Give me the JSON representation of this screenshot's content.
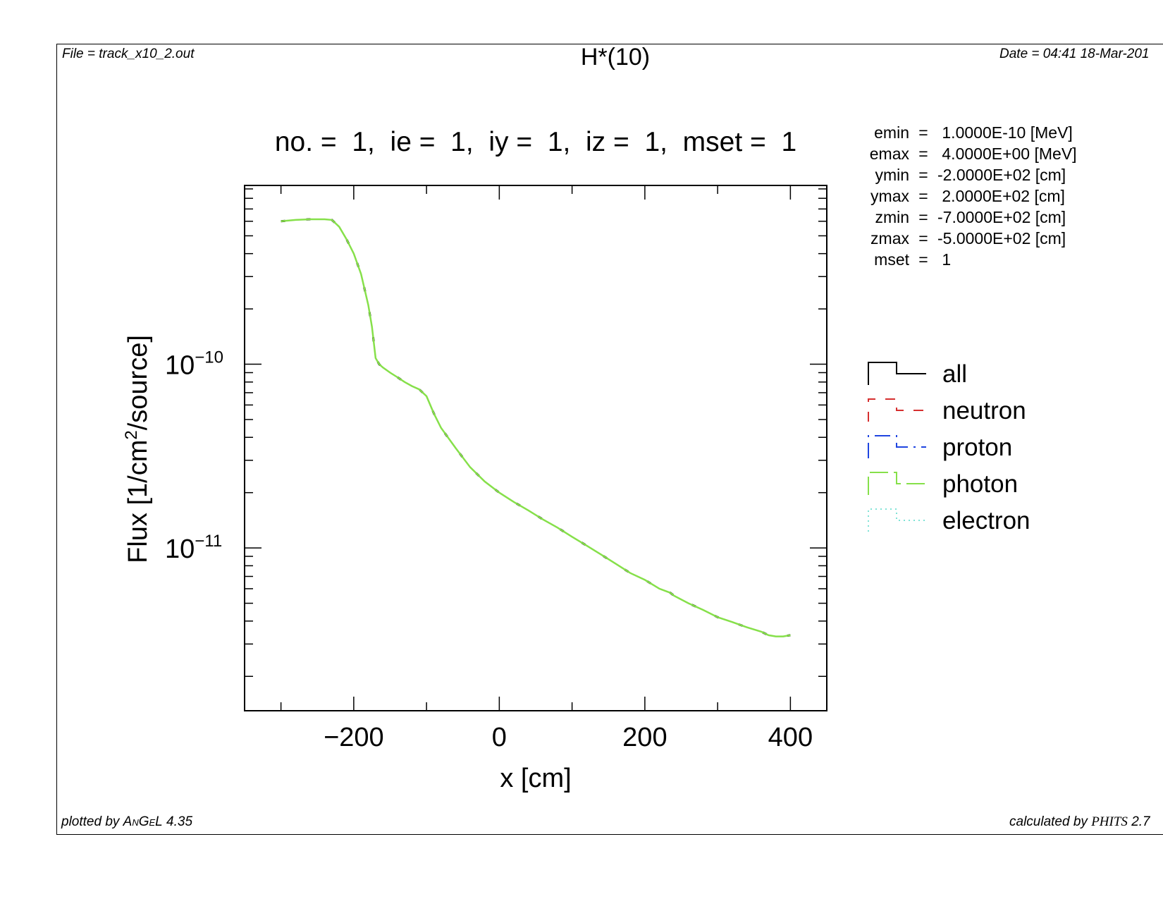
{
  "header": {
    "file": "File = track_x10_2.out",
    "title": "H*(10)",
    "date": "Date = 04:41 18-Mar-201"
  },
  "subtitle": "no. =  1,  ie =  1,  iy =  1,  iz =  1,  mset =  1",
  "params": [
    {
      "name": "emin",
      "value": " 1.0000E-10 [MeV]"
    },
    {
      "name": "emax",
      "value": " 4.0000E+00 [MeV]"
    },
    {
      "name": "ymin",
      "value": "-2.0000E+02 [cm]"
    },
    {
      "name": "ymax",
      "value": " 2.0000E+02 [cm]"
    },
    {
      "name": "zmin",
      "value": "-7.0000E+02 [cm]"
    },
    {
      "name": "zmax",
      "value": "-5.0000E+02 [cm]"
    },
    {
      "name": "mset",
      "value": " 1"
    }
  ],
  "footer": {
    "plotted_prefix": "plotted by ",
    "plotted_program": "AnGeL",
    "plotted_version": " 4.35",
    "calc_prefix": "calculated by ",
    "calc_program": "PHITS",
    "calc_version": " 2.7"
  },
  "chart_data": {
    "type": "line",
    "xlabel": "x [cm]",
    "ylabel_parts": [
      "Flux [1/cm",
      "2",
      "/source]"
    ],
    "xlim": [
      -350,
      450
    ],
    "ylim": [
      1.3e-12,
      9.4e-10
    ],
    "yscale": "log",
    "xticks": [
      -200,
      0,
      200,
      400
    ],
    "xtick_labels": [
      "−200",
      "0",
      "200",
      "400"
    ],
    "yticks": [
      1e-10,
      1e-11
    ],
    "ytick_labels": [
      {
        "base": "10",
        "exp": "−10"
      },
      {
        "base": "10",
        "exp": "−11"
      }
    ],
    "legend": {
      "position": "right"
    },
    "legend_entries": [
      {
        "name": "all",
        "color": "#000000",
        "style": "solid"
      },
      {
        "name": "neutron",
        "color": "#d62f2f",
        "style": "dashed"
      },
      {
        "name": "proton",
        "color": "#1f45e0",
        "style": "dashdot"
      },
      {
        "name": "photon",
        "color": "#86e04a",
        "style": "longdash"
      },
      {
        "name": "electron",
        "color": "#7fe3d6",
        "style": "dotted"
      }
    ],
    "series": [
      {
        "name": "photon",
        "color": "#86e04a",
        "x": [
          -300,
          -280,
          -260,
          -240,
          -230,
          -220,
          -210,
          -200,
          -190,
          -180,
          -175,
          -170,
          -165,
          -160,
          -150,
          -140,
          -130,
          -120,
          -110,
          -100,
          -90,
          -80,
          -60,
          -40,
          -20,
          0,
          20,
          40,
          60,
          80,
          100,
          120,
          140,
          160,
          180,
          200,
          220,
          230,
          235,
          240,
          260,
          280,
          300,
          320,
          340,
          360,
          370,
          380,
          390,
          400
        ],
        "values": [
          6e-10,
          6.1e-10,
          6.15e-10,
          6.15e-10,
          6.1e-10,
          5.6e-10,
          4.8e-10,
          4e-10,
          3.1e-10,
          2.1e-10,
          1.6e-10,
          1.08e-10,
          1e-10,
          9.6e-11,
          9e-11,
          8.5e-11,
          8e-11,
          7.6e-11,
          7.3e-11,
          6.7e-11,
          5.4e-11,
          4.5e-11,
          3.5e-11,
          2.75e-11,
          2.3e-11,
          2e-11,
          1.78e-11,
          1.6e-11,
          1.43e-11,
          1.29e-11,
          1.15e-11,
          1.03e-11,
          9.2e-12,
          8.2e-12,
          7.3e-12,
          6.7e-12,
          6e-12,
          5.8e-12,
          5.7e-12,
          5.5e-12,
          5e-12,
          4.6e-12,
          4.2e-12,
          3.95e-12,
          3.7e-12,
          3.5e-12,
          3.35e-12,
          3.3e-12,
          3.3e-12,
          3.35e-12
        ]
      }
    ]
  }
}
